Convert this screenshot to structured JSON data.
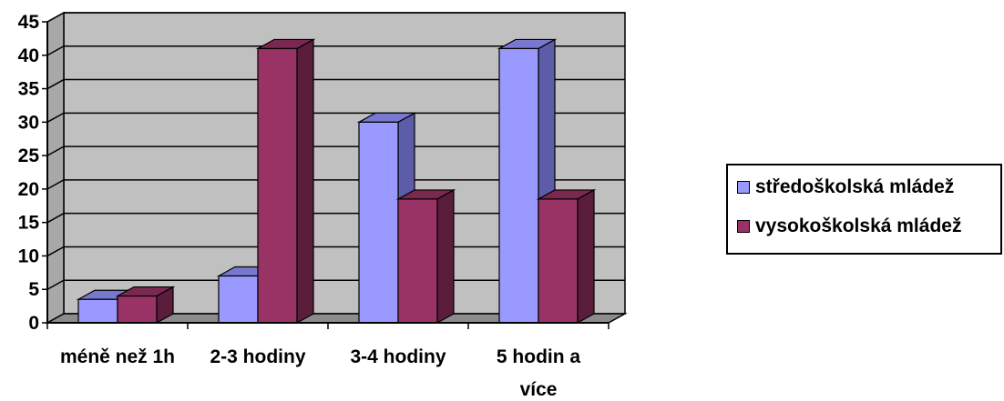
{
  "chart_data": {
    "type": "bar",
    "categories": [
      "méně než 1h",
      "2-3 hodiny",
      "3-4 hodiny",
      "5 hodin a více"
    ],
    "category_lines": [
      [
        "méně než 1h"
      ],
      [
        "2-3 hodiny"
      ],
      [
        "3-4 hodiny"
      ],
      [
        "5 hodin a",
        "více"
      ]
    ],
    "series": [
      {
        "name": "středoškolská mládež",
        "values": [
          3.5,
          7,
          30,
          41
        ],
        "color": "#9999FF",
        "side_color": "#5C5CA8",
        "top_color": "#7878D0"
      },
      {
        "name": "vysokoškolská mládež",
        "values": [
          4,
          41,
          18.5,
          18.5
        ],
        "color": "#993366",
        "side_color": "#5A1E3C",
        "top_color": "#7A2850"
      }
    ],
    "ylim": [
      0,
      45
    ],
    "yticks": [
      "0",
      "5",
      "10",
      "15",
      "20",
      "25",
      "30",
      "35",
      "40",
      "45"
    ],
    "grid": true,
    "legend_position": "right",
    "plot_background": "#C0C0C0",
    "title": "",
    "xlabel": "",
    "ylabel": ""
  }
}
